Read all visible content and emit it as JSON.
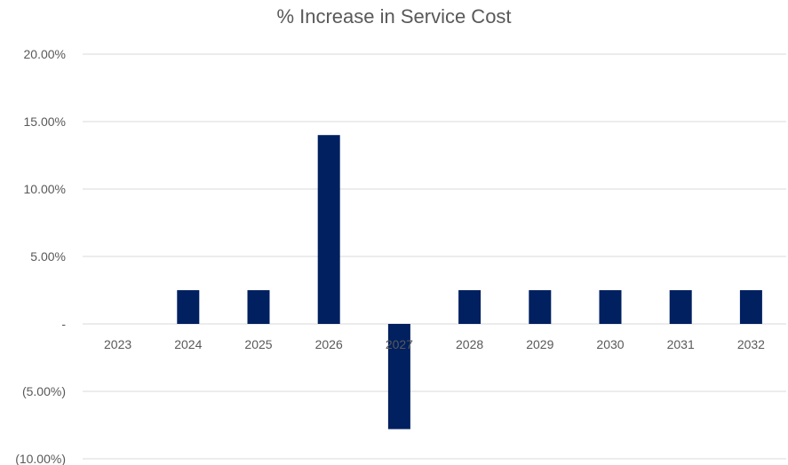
{
  "chart_data": {
    "type": "bar",
    "title": "% Increase in Service Cost",
    "xlabel": "",
    "ylabel": "",
    "categories": [
      "2023",
      "2024",
      "2025",
      "2026",
      "2027",
      "2028",
      "2029",
      "2030",
      "2031",
      "2032"
    ],
    "values": [
      0,
      2.5,
      2.5,
      14.0,
      -7.8,
      2.5,
      2.5,
      2.5,
      2.5,
      2.5
    ],
    "ylim": [
      -10,
      20
    ],
    "y_ticks": [
      {
        "value": 20,
        "label": "20.00%"
      },
      {
        "value": 15,
        "label": "15.00%"
      },
      {
        "value": 10,
        "label": "10.00%"
      },
      {
        "value": 5,
        "label": "5.00%"
      },
      {
        "value": 0,
        "label": "-"
      },
      {
        "value": -5,
        "label": "(5.00%)"
      },
      {
        "value": -10,
        "label": "(10.00%)"
      }
    ],
    "grid": true,
    "legend": "none",
    "bar_color": "#002060",
    "grid_color": "#d9d9d9",
    "text_color": "#595959"
  }
}
